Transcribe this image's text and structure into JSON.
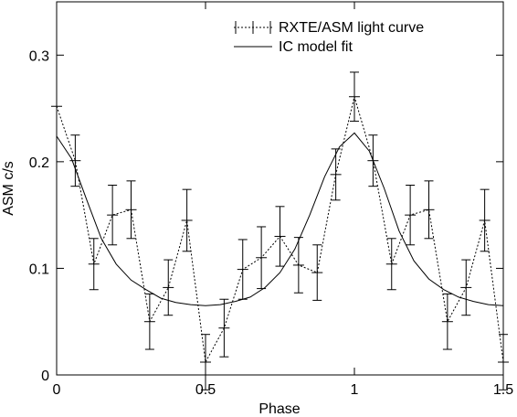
{
  "chart_data": {
    "type": "line",
    "xlabel": "Phase",
    "ylabel": "ASM c/s",
    "xlim": [
      0,
      1.5
    ],
    "ylim": [
      0,
      0.35
    ],
    "xticks": [
      0,
      0.5,
      1,
      1.5
    ],
    "xtick_labels": [
      "0",
      "0.5",
      "1",
      "1.5"
    ],
    "yticks": [
      0,
      0.1,
      0.2,
      0.3
    ],
    "ytick_labels": [
      "0",
      "0.1",
      "0.2",
      "0.3"
    ],
    "legend": {
      "position": "top-right"
    },
    "series": [
      {
        "name": "RXTE/ASM light curve",
        "style": "dashed-with-errorbars",
        "x": [
          0.0,
          0.0625,
          0.125,
          0.1875,
          0.25,
          0.3125,
          0.375,
          0.4375,
          0.5,
          0.5625,
          0.625,
          0.6875,
          0.75,
          0.8125,
          0.875,
          0.9375,
          1.0,
          1.0625,
          1.125,
          1.1875,
          1.25,
          1.3125,
          1.375,
          1.4375,
          1.5
        ],
        "y": [
          0.252,
          0.201,
          0.104,
          0.15,
          0.155,
          0.05,
          0.082,
          0.145,
          0.012,
          0.044,
          0.099,
          0.11,
          0.13,
          0.103,
          0.096,
          0.188,
          0.261,
          0.201,
          0.104,
          0.15,
          0.155,
          0.05,
          0.082,
          0.145,
          0.012
        ],
        "yerr": [
          0.0,
          0.024,
          0.024,
          0.028,
          0.027,
          0.026,
          0.026,
          0.029,
          0.026,
          0.027,
          0.028,
          0.029,
          0.028,
          0.026,
          0.026,
          0.024,
          0.023,
          0.024,
          0.024,
          0.028,
          0.027,
          0.026,
          0.026,
          0.029,
          0.026
        ]
      },
      {
        "name": "IC model fit",
        "style": "solid",
        "x": [
          0.0,
          0.05,
          0.1,
          0.15,
          0.2,
          0.25,
          0.3,
          0.35,
          0.4,
          0.45,
          0.5,
          0.55,
          0.6,
          0.65,
          0.7,
          0.75,
          0.8,
          0.85,
          0.9,
          0.95,
          1.0,
          1.05,
          1.1,
          1.15,
          1.2,
          1.25,
          1.3,
          1.35,
          1.4,
          1.45,
          1.5
        ],
        "y": [
          0.224,
          0.203,
          0.165,
          0.128,
          0.104,
          0.089,
          0.08,
          0.072,
          0.068,
          0.066,
          0.065,
          0.066,
          0.069,
          0.073,
          0.082,
          0.096,
          0.118,
          0.15,
          0.186,
          0.214,
          0.227,
          0.21,
          0.175,
          0.135,
          0.107,
          0.09,
          0.08,
          0.073,
          0.069,
          0.066,
          0.065
        ]
      }
    ]
  }
}
